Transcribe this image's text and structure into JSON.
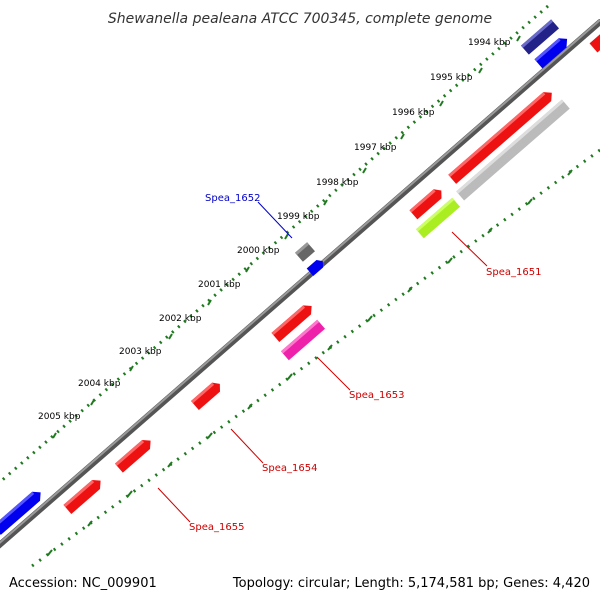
{
  "title": "Shewanella pealeana ATCC 700345, complete genome",
  "footer": {
    "accession": "Accession: NC_009901",
    "summary": "Topology: circular; Length: 5,174,581 bp; Genes: 4,420"
  },
  "colors": {
    "backbone": "#888888",
    "ruler": "#1f7a1f",
    "forward_gene": "#ee1111",
    "label_red": "#cc0000",
    "label_blue": "#0000cc",
    "blue_gene": "#0000ee",
    "navy_gene": "#222288",
    "grey_gene": "#bbbbbb",
    "dark_grey_gene": "#666666",
    "lime_gene": "#aaee22",
    "magenta_gene": "#ee22aa"
  },
  "ticks": [
    {
      "label": "1994 kbp"
    },
    {
      "label": "1995 kbp"
    },
    {
      "label": "1996 kbp"
    },
    {
      "label": "1997 kbp"
    },
    {
      "label": "1998 kbp"
    },
    {
      "label": "1999 kbp"
    },
    {
      "label": "2000 kbp"
    },
    {
      "label": "2001 kbp"
    },
    {
      "label": "2002 kbp"
    },
    {
      "label": "2003 kbp"
    },
    {
      "label": "2004 kbp"
    },
    {
      "label": "2005 kbp"
    }
  ],
  "gene_labels": [
    {
      "name": "Spea_1652",
      "color": "blue"
    },
    {
      "name": "Spea_1651",
      "color": "red"
    },
    {
      "name": "Spea_1653",
      "color": "red"
    },
    {
      "name": "Spea_1654",
      "color": "red"
    },
    {
      "name": "Spea_1655",
      "color": "red"
    }
  ]
}
